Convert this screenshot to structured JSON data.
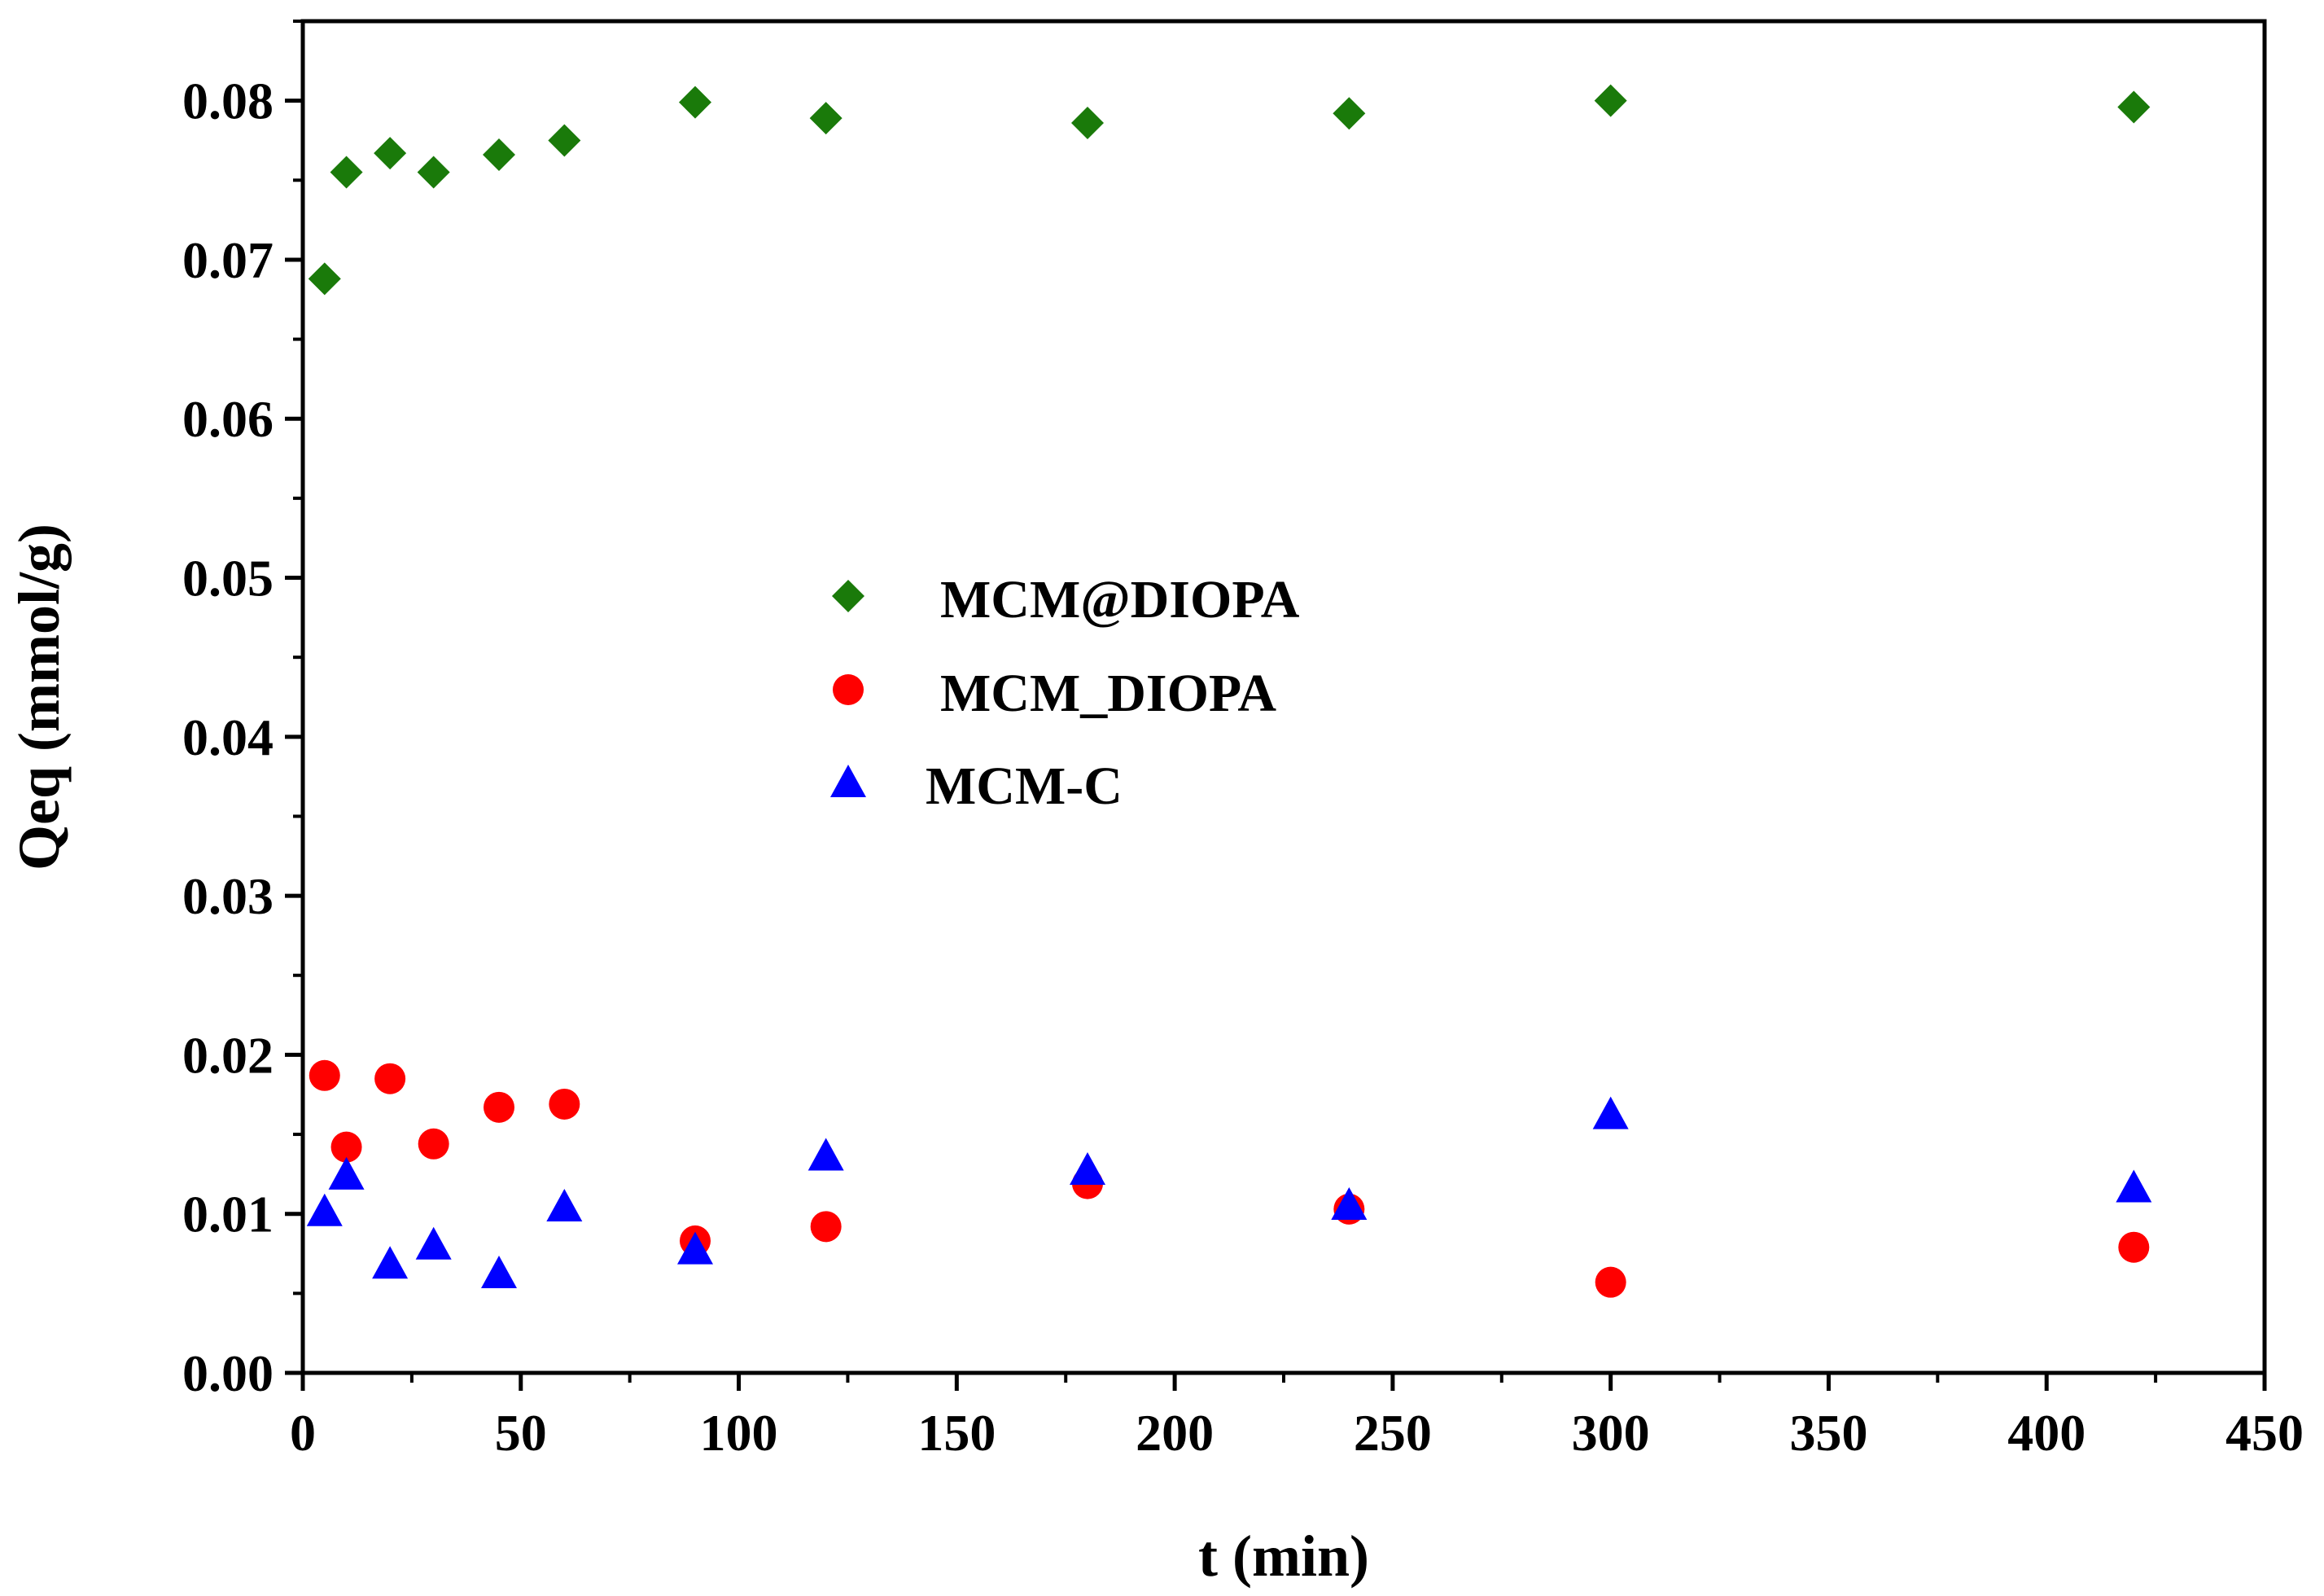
{
  "chart_data": {
    "type": "scatter",
    "title": "",
    "xlabel": "t (min)",
    "ylabel": "Qeq (mmol/g)",
    "xlim": [
      0,
      450
    ],
    "ylim": [
      0,
      0.085
    ],
    "xticks": [
      0,
      50,
      100,
      150,
      200,
      250,
      300,
      350,
      400,
      450
    ],
    "yticks": [
      0.0,
      0.01,
      0.02,
      0.03,
      0.04,
      0.05,
      0.06,
      0.07,
      0.08
    ],
    "xtick_labels": [
      "0",
      "50",
      "100",
      "150",
      "200",
      "250",
      "300",
      "350",
      "400",
      "450"
    ],
    "ytick_labels": [
      "0.00",
      "0.01",
      "0.02",
      "0.03",
      "0.04",
      "0.05",
      "0.06",
      "0.07",
      "0.08"
    ],
    "grid": false,
    "legend_position": "center",
    "series": [
      {
        "name": "MCM@DIOPA",
        "marker": "diamond",
        "color": "#1a7a0a",
        "x": [
          5,
          10,
          20,
          30,
          45,
          60,
          90,
          120,
          180,
          240,
          300,
          420
        ],
        "y": [
          0.0688,
          0.0755,
          0.0767,
          0.0755,
          0.0766,
          0.0775,
          0.0799,
          0.0789,
          0.0786,
          0.0792,
          0.08,
          0.0796
        ]
      },
      {
        "name": "MCM_DIOPA",
        "marker": "circle",
        "color": "#ff0000",
        "x": [
          5,
          10,
          20,
          30,
          45,
          60,
          90,
          120,
          180,
          240,
          300,
          420
        ],
        "y": [
          0.0187,
          0.0142,
          0.0185,
          0.0144,
          0.0167,
          0.0169,
          0.0083,
          0.0092,
          0.0119,
          0.0103,
          0.0057,
          0.0079
        ]
      },
      {
        "name": "MCM-C",
        "marker": "triangle",
        "color": "#0000ff",
        "x": [
          5,
          10,
          20,
          30,
          45,
          60,
          90,
          120,
          180,
          240,
          300,
          420
        ],
        "y": [
          0.0102,
          0.0125,
          0.0069,
          0.0081,
          0.0063,
          0.0105,
          0.0078,
          0.0137,
          0.0128,
          0.0106,
          0.0163,
          0.0117
        ]
      }
    ]
  }
}
